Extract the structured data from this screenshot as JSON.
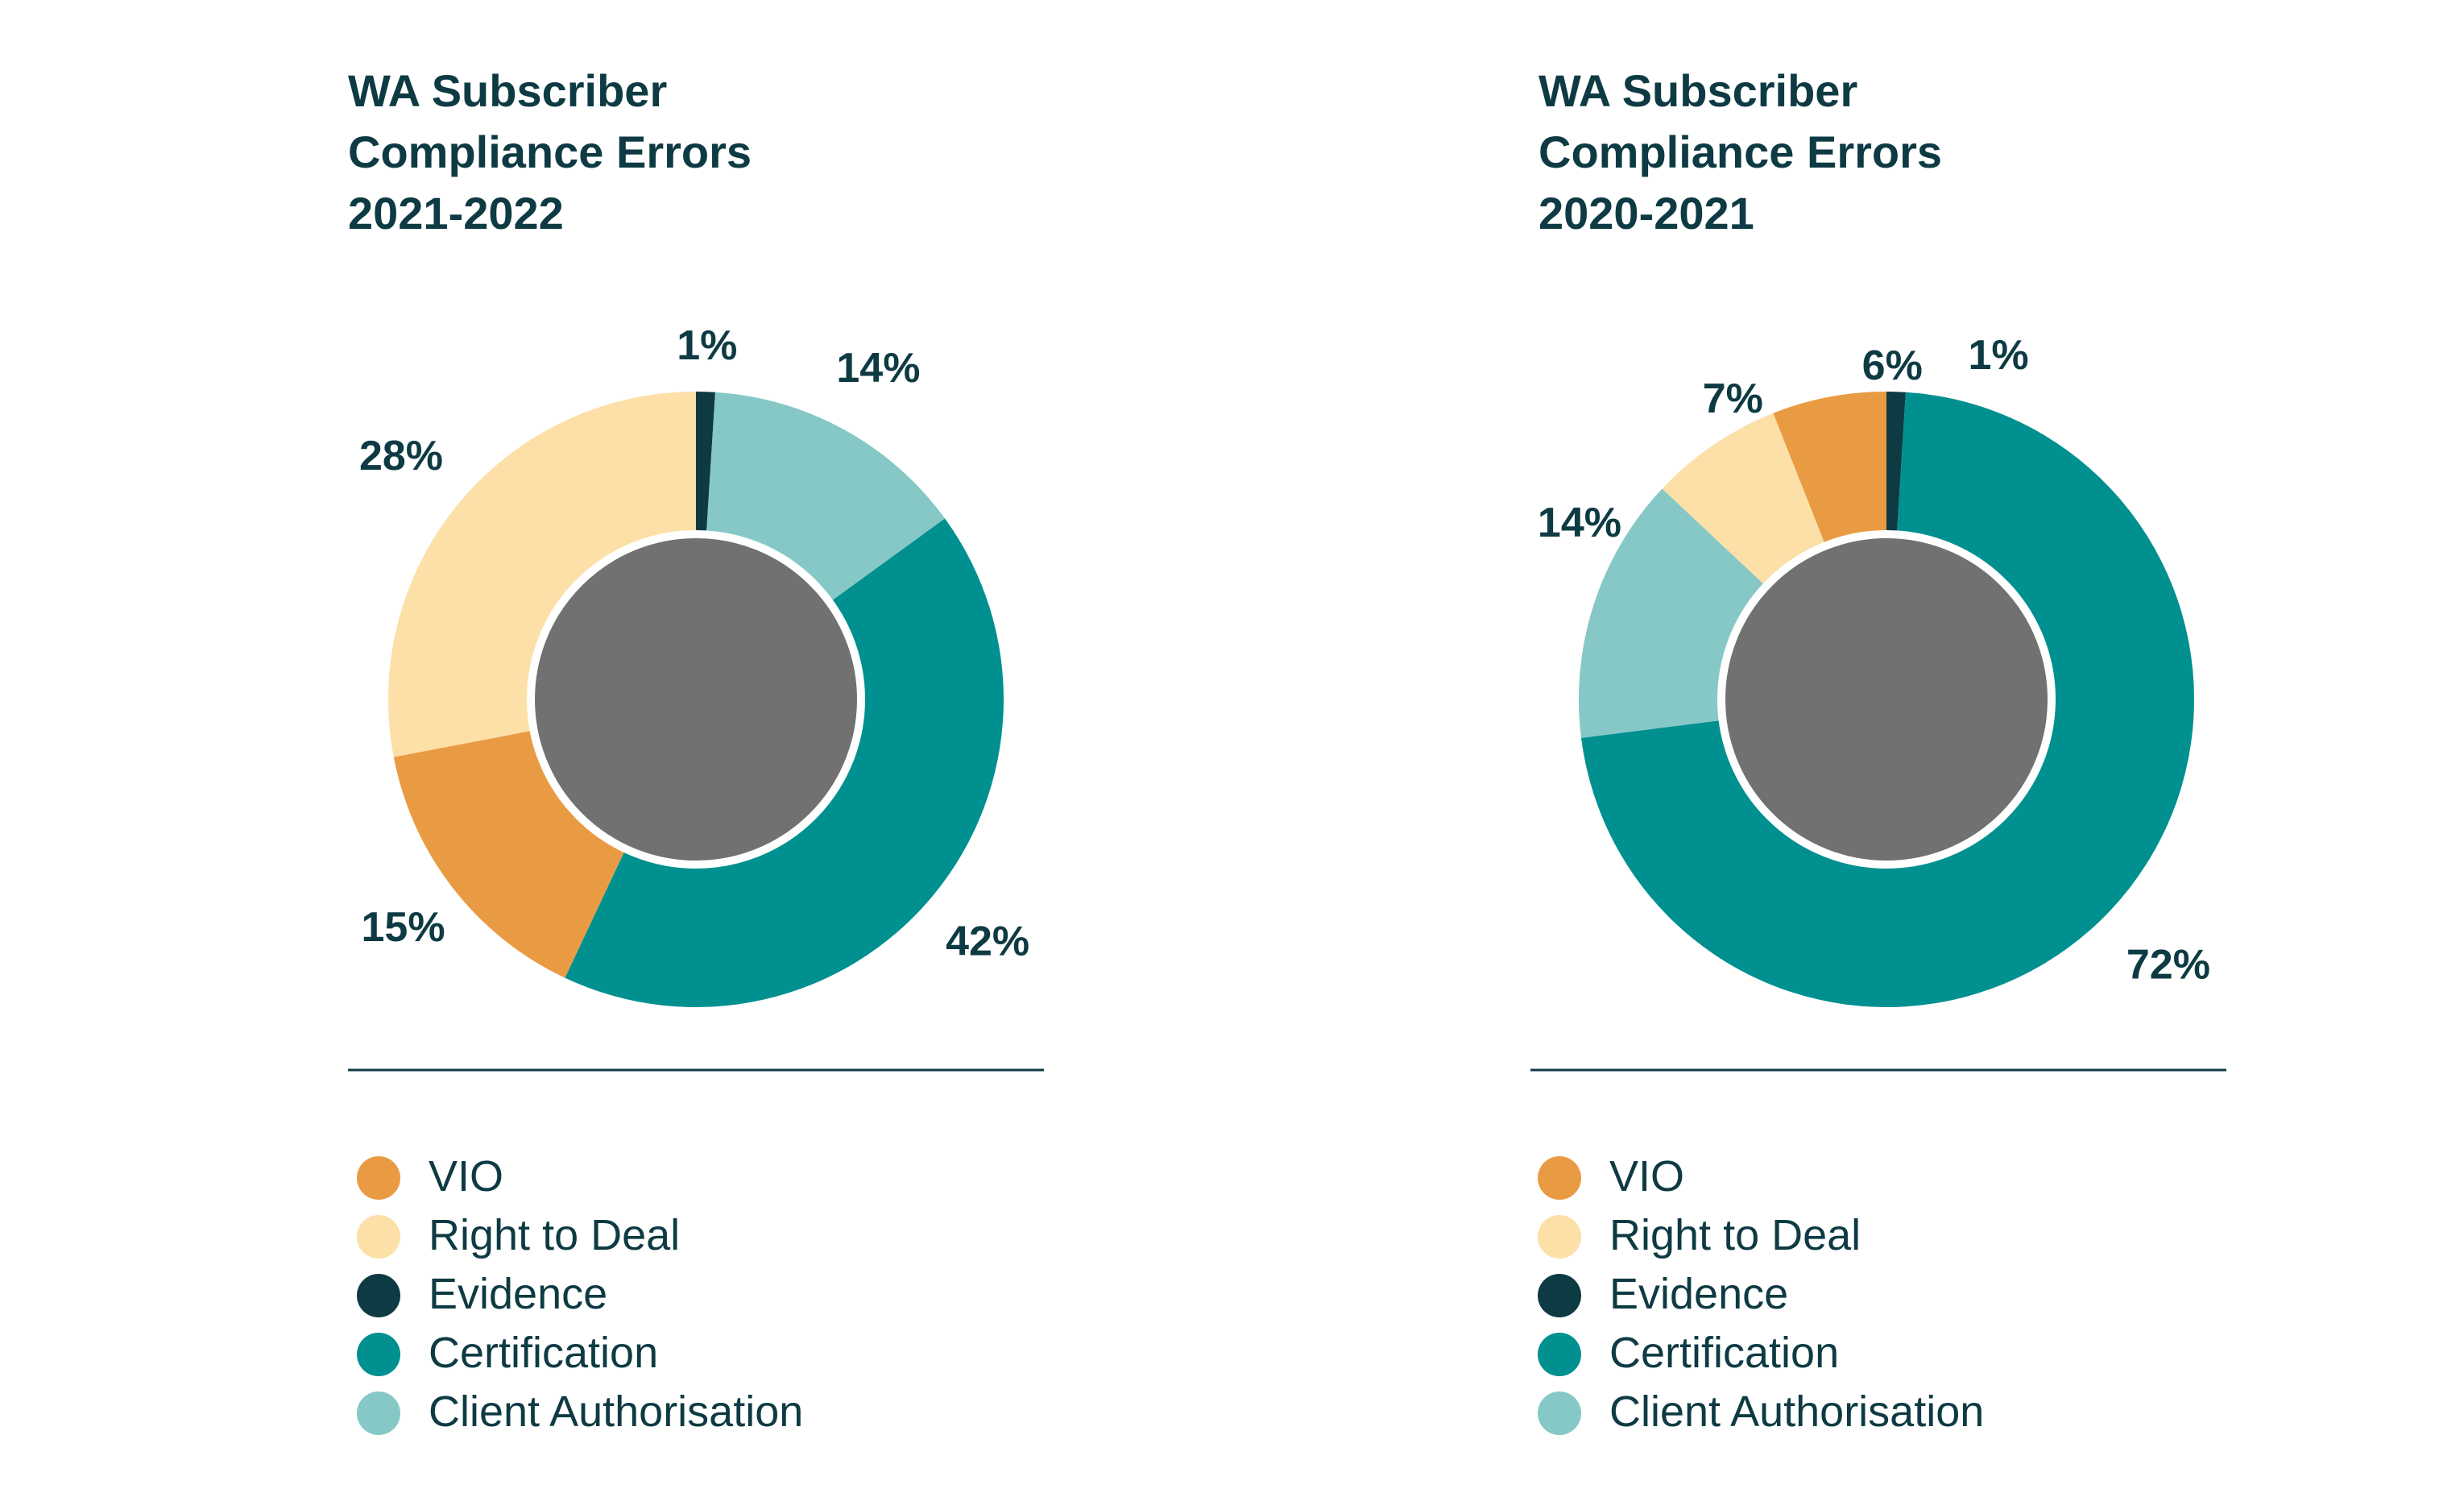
{
  "colors": {
    "VIO": "#E99B43",
    "Right to Deal": "#FCE0A8",
    "Evidence": "#0E3B43",
    "Certification": "#009090",
    "Client Authorisation": "#86C8C6",
    "center": "#717171",
    "text": "#0E3B43"
  },
  "chart_data": [
    {
      "type": "donut",
      "title_lines": [
        "WA Subscriber",
        "Compliance Errors",
        "2021-2022"
      ],
      "legend": [
        "VIO",
        "Right to Deal",
        "Evidence",
        "Certification",
        "Client Authorisation"
      ],
      "slices": [
        {
          "name": "Evidence",
          "value": 1,
          "label": "1%"
        },
        {
          "name": "Client Authorisation",
          "value": 14,
          "label": "14%"
        },
        {
          "name": "Certification",
          "value": 42,
          "label": "42%"
        },
        {
          "name": "VIO",
          "value": 15,
          "label": "15%"
        },
        {
          "name": "Right to Deal",
          "value": 28,
          "label": "28%"
        }
      ]
    },
    {
      "type": "donut",
      "title_lines": [
        "WA Subscriber",
        "Compliance Errors",
        "2020-2021"
      ],
      "legend": [
        "VIO",
        "Right to Deal",
        "Evidence",
        "Certification",
        "Client Authorisation"
      ],
      "slices": [
        {
          "name": "Evidence",
          "value": 1,
          "label": "1%"
        },
        {
          "name": "Certification",
          "value": 72,
          "label": "72%"
        },
        {
          "name": "Client Authorisation",
          "value": 14,
          "label": "14%"
        },
        {
          "name": "Right to Deal",
          "value": 7,
          "label": "7%"
        },
        {
          "name": "VIO",
          "value": 6,
          "label": "6%"
        }
      ]
    }
  ]
}
